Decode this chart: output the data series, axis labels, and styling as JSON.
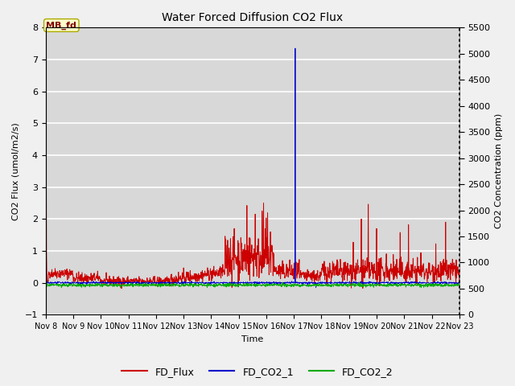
{
  "title": "Water Forced Diffusion CO2 Flux",
  "xlabel": "Time",
  "ylabel_left": "CO2 Flux (umol/m2/s)",
  "ylabel_right": "CO2 Concentration (ppm)",
  "ylim_left": [
    -1.0,
    8.0
  ],
  "ylim_right": [
    0,
    5500
  ],
  "yticks_left": [
    -1.0,
    0.0,
    1.0,
    2.0,
    3.0,
    4.0,
    5.0,
    6.0,
    7.0,
    8.0
  ],
  "yticks_right": [
    0,
    500,
    1000,
    1500,
    2000,
    2500,
    3000,
    3500,
    4000,
    4500,
    5000,
    5500
  ],
  "xtick_labels": [
    "Nov 8",
    "Nov 9",
    "Nov 10",
    "Nov 11",
    "Nov 12",
    "Nov 13",
    "Nov 14",
    "Nov 15",
    "Nov 16",
    "Nov 17",
    "Nov 18",
    "Nov 19",
    "Nov 20",
    "Nov 21",
    "Nov 22",
    "Nov 23"
  ],
  "color_flux": "#cc0000",
  "color_co2_1": "#0000cc",
  "color_co2_2": "#00aa00",
  "annotation_text": "MB_fd",
  "background_color": "#d8d8d8",
  "grid_color": "#ffffff",
  "fig_facecolor": "#f0f0f0",
  "legend_items": [
    "FD_Flux",
    "FD_CO2_1",
    "FD_CO2_2"
  ]
}
